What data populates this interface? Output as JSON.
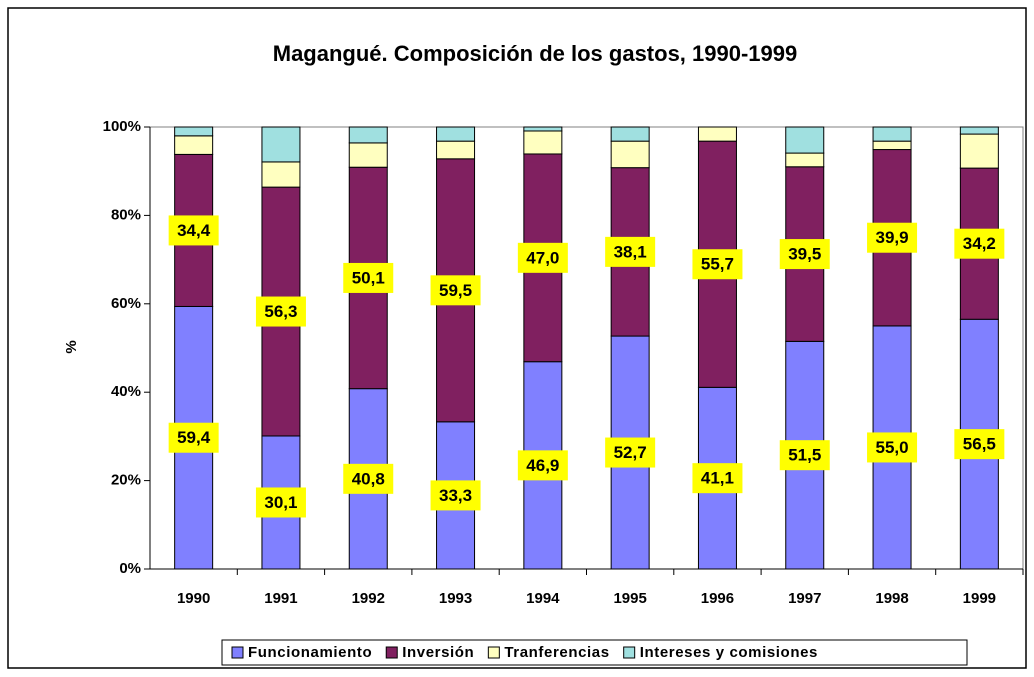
{
  "chart_data": {
    "type": "stacked_bar",
    "title": "Magangué. Composición de los gastos, 1990-1999",
    "y_label": "%",
    "categories": [
      "1990",
      "1991",
      "1992",
      "1993",
      "1994",
      "1995",
      "1996",
      "1997",
      "1998",
      "1999"
    ],
    "series": [
      {
        "name": "Funcionamiento",
        "color": "#8080ff",
        "values": [
          59.4,
          30.1,
          40.8,
          33.3,
          46.9,
          52.7,
          41.1,
          51.5,
          55.0,
          56.5
        ],
        "value_labels": [
          "59,4",
          "30,1",
          "40,8",
          "33,3",
          "46,9",
          "52,7",
          "41,1",
          "51,5",
          "55,0",
          "56,5"
        ]
      },
      {
        "name": "Inversión",
        "color": "#802060",
        "values": [
          34.4,
          56.3,
          50.1,
          59.5,
          47.0,
          38.1,
          55.7,
          39.5,
          39.9,
          34.2
        ],
        "value_labels": [
          "34,4",
          "56,3",
          "50,1",
          "59,5",
          "47,0",
          "38,1",
          "55,7",
          "39,5",
          "39,9",
          "34,2"
        ]
      },
      {
        "name": "Tranferencias",
        "color": "#ffffc0",
        "values": [
          4.2,
          5.7,
          5.5,
          4.0,
          5.2,
          6.0,
          3.2,
          3.1,
          1.9,
          7.7
        ]
      },
      {
        "name": "Intereses y comisiones",
        "color": "#a0e0e0",
        "values": [
          2.0,
          7.9,
          3.6,
          3.2,
          0.9,
          3.2,
          0,
          5.9,
          3.2,
          1.6
        ]
      }
    ],
    "ylim": [
      0,
      100
    ],
    "yticks": [
      {
        "value": 0,
        "label": "0%"
      },
      {
        "value": 20,
        "label": "20%"
      },
      {
        "value": 40,
        "label": "40%"
      },
      {
        "value": 60,
        "label": "60%"
      },
      {
        "value": 80,
        "label": "80%"
      },
      {
        "value": 100,
        "label": "100%"
      }
    ],
    "legend": "bottom"
  }
}
